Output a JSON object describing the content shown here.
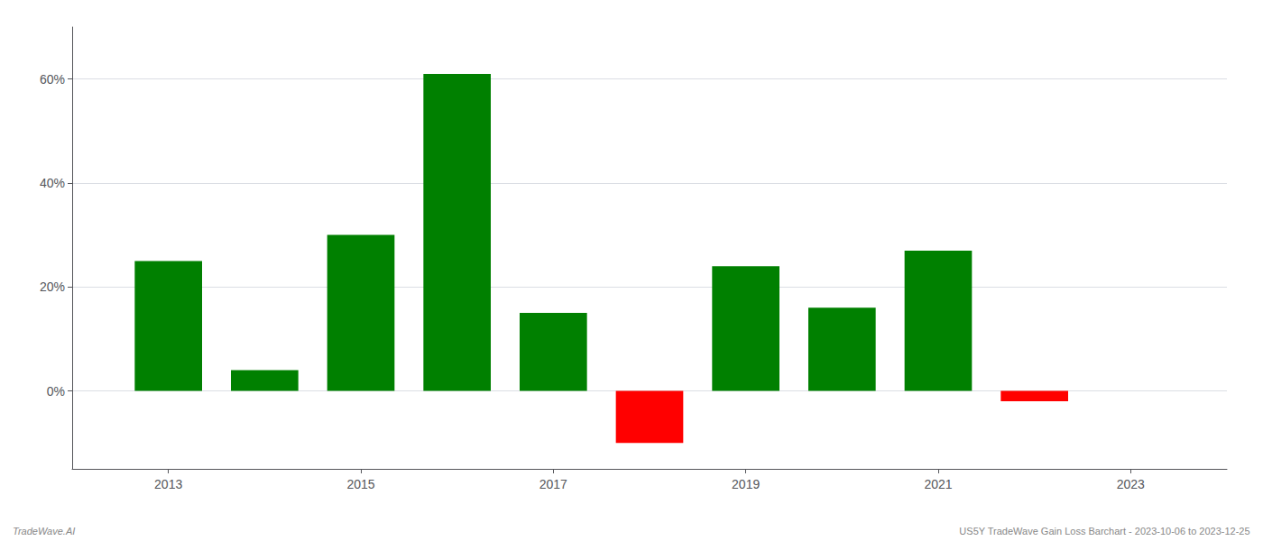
{
  "chart_data": {
    "type": "bar",
    "x": [
      2013,
      2014,
      2015,
      2016,
      2017,
      2018,
      2019,
      2020,
      2021,
      2022
    ],
    "values": [
      0.25,
      0.04,
      0.3,
      0.61,
      0.15,
      -0.1,
      0.24,
      0.16,
      0.27,
      -0.02
    ],
    "colors": [
      "#008000",
      "#008000",
      "#008000",
      "#008000",
      "#008000",
      "#ff0000",
      "#008000",
      "#008000",
      "#008000",
      "#ff0000"
    ],
    "xlim": [
      2012.0,
      2024.0
    ],
    "xticks": [
      2013,
      2015,
      2017,
      2019,
      2021,
      2023
    ],
    "ylim": [
      -0.15,
      0.7
    ],
    "yticks": [
      {
        "value": 0.0,
        "label": "0%"
      },
      {
        "value": 0.2,
        "label": "20%"
      },
      {
        "value": 0.4,
        "label": "40%"
      },
      {
        "value": 0.6,
        "label": "60%"
      }
    ],
    "grid": true,
    "annotations": [
      "TradeWave.AI",
      "US5Y TradeWave Gain Loss Barchart - 2023-10-06 to 2023-12-25"
    ]
  }
}
